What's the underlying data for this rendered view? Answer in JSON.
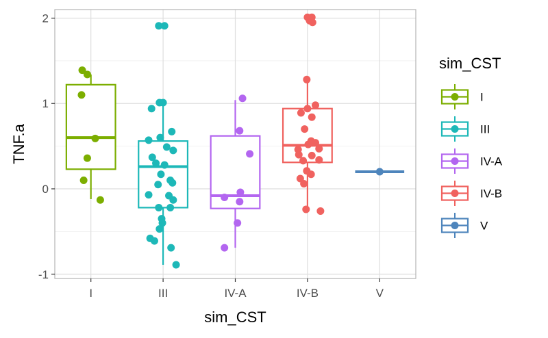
{
  "chart_data": {
    "type": "boxplot",
    "xlabel": "sim_CST",
    "ylabel": "TNF.a",
    "ylim": [
      -1.05,
      2.1
    ],
    "yticks": [
      -1,
      0,
      1,
      2
    ],
    "categories": [
      "I",
      "III",
      "IV-A",
      "IV-B",
      "V"
    ],
    "grid": true,
    "legend": {
      "title": "sim_CST",
      "position": "right"
    },
    "colors": {
      "I": "#7CAE00",
      "III": "#1DB8B8",
      "IV-A": "#B366F0",
      "IV-B": "#F0625F",
      "V": "#4E85BC"
    },
    "boxes": [
      {
        "category": "I",
        "q1": 0.23,
        "median": 0.6,
        "q3": 1.22,
        "whisker_low": -0.12,
        "whisker_high": 1.34
      },
      {
        "category": "III",
        "q1": -0.22,
        "median": 0.26,
        "q3": 0.56,
        "whisker_low": -0.89,
        "whisker_high": 1.01
      },
      {
        "category": "IV-A",
        "q1": -0.23,
        "median": -0.08,
        "q3": 0.62,
        "whisker_low": -0.69,
        "whisker_high": 1.04
      },
      {
        "category": "IV-B",
        "q1": 0.31,
        "median": 0.51,
        "q3": 0.94,
        "whisker_low": -0.24,
        "whisker_high": 1.28
      },
      {
        "category": "V",
        "q1": 0.2,
        "median": 0.2,
        "q3": 0.2,
        "whisker_low": 0.2,
        "whisker_high": 0.2
      }
    ],
    "points": {
      "I": [
        [
          -0.12,
          1.39
        ],
        [
          -0.05,
          1.34
        ],
        [
          -0.13,
          1.1
        ],
        [
          0.06,
          0.59
        ],
        [
          -0.05,
          0.36
        ],
        [
          -0.1,
          0.1
        ],
        [
          0.13,
          -0.13
        ]
      ],
      "III": [
        [
          -0.06,
          1.91
        ],
        [
          0.02,
          1.91
        ],
        [
          -0.16,
          0.94
        ],
        [
          -0.05,
          1.01
        ],
        [
          0.0,
          1.01
        ],
        [
          0.12,
          0.67
        ],
        [
          -0.04,
          0.6
        ],
        [
          -0.2,
          0.57
        ],
        [
          0.05,
          0.49
        ],
        [
          0.14,
          0.45
        ],
        [
          -0.15,
          0.37
        ],
        [
          -0.1,
          0.3
        ],
        [
          0.02,
          0.28
        ],
        [
          -0.03,
          0.17
        ],
        [
          0.13,
          0.07
        ],
        [
          -0.07,
          0.05
        ],
        [
          0.1,
          0.1
        ],
        [
          0.08,
          -0.08
        ],
        [
          0.14,
          -0.13
        ],
        [
          -0.2,
          -0.07
        ],
        [
          -0.06,
          -0.22
        ],
        [
          0.1,
          -0.22
        ],
        [
          -0.02,
          -0.35
        ],
        [
          -0.01,
          -0.4
        ],
        [
          -0.05,
          -0.47
        ],
        [
          -0.18,
          -0.58
        ],
        [
          -0.12,
          -0.61
        ],
        [
          0.11,
          -0.69
        ],
        [
          0.18,
          -0.89
        ]
      ],
      "IV-A": [
        [
          0.1,
          1.06
        ],
        [
          0.06,
          0.68
        ],
        [
          0.2,
          0.41
        ],
        [
          0.07,
          -0.04
        ],
        [
          0.06,
          -0.15
        ],
        [
          -0.15,
          -0.1
        ],
        [
          0.03,
          -0.4
        ],
        [
          -0.15,
          -0.69
        ]
      ],
      "IV-B": [
        [
          0.0,
          2.01
        ],
        [
          0.06,
          2.01
        ],
        [
          0.03,
          1.97
        ],
        [
          0.07,
          1.95
        ],
        [
          -0.01,
          1.28
        ],
        [
          0.11,
          0.98
        ],
        [
          0.0,
          0.94
        ],
        [
          -0.09,
          0.89
        ],
        [
          0.06,
          0.84
        ],
        [
          -0.04,
          0.7
        ],
        [
          0.05,
          0.56
        ],
        [
          0.11,
          0.54
        ],
        [
          0.01,
          0.52
        ],
        [
          -0.13,
          0.46
        ],
        [
          0.16,
          0.47
        ],
        [
          -0.12,
          0.4
        ],
        [
          0.06,
          0.39
        ],
        [
          0.16,
          0.34
        ],
        [
          -0.06,
          0.33
        ],
        [
          -0.01,
          0.21
        ],
        [
          0.05,
          0.17
        ],
        [
          -0.1,
          0.12
        ],
        [
          -0.05,
          0.06
        ],
        [
          -0.02,
          -0.24
        ],
        [
          0.18,
          -0.26
        ]
      ],
      "V": [
        [
          0.0,
          0.2
        ]
      ]
    }
  }
}
